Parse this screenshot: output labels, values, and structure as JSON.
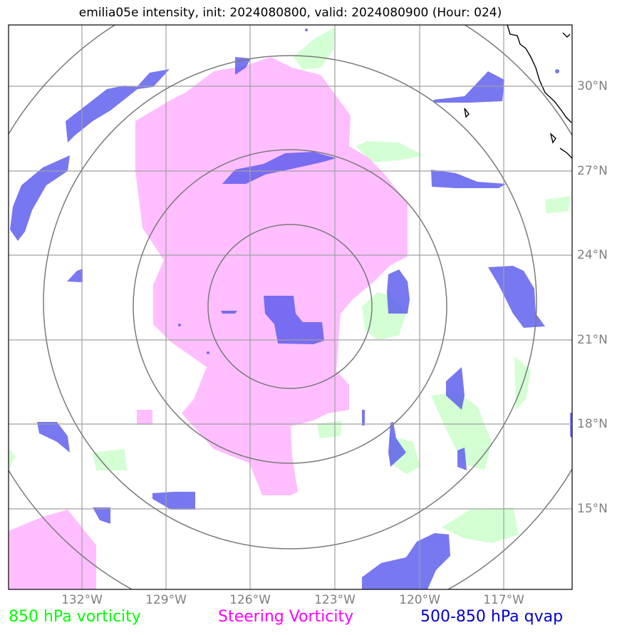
{
  "title": "emilia05e intensity, init: 2024080800, valid: 2024080900 (Hour: 024)",
  "lon_labels": [
    "132°W",
    "129°W",
    "126°W",
    "123°W",
    "120°W",
    "117°W"
  ],
  "lat_labels": [
    "30°N",
    "27°N",
    "24°N",
    "21°N",
    "18°N",
    "15°N"
  ],
  "legend": {
    "vort850": "850 hPa vorticity",
    "steering": "Steering Vorticity",
    "qvap": "500-850 hPa qvap"
  },
  "colors": {
    "vort850": "#00ff00",
    "steering": "#ff00ff",
    "qvap": "#0000cc",
    "vort850_fill": "#ccffcc",
    "steering_fill": "#ffbbff",
    "qvap_fill": "#5a5aee",
    "grid": "#a0a0a0",
    "rings": "#7a7a7a"
  }
}
